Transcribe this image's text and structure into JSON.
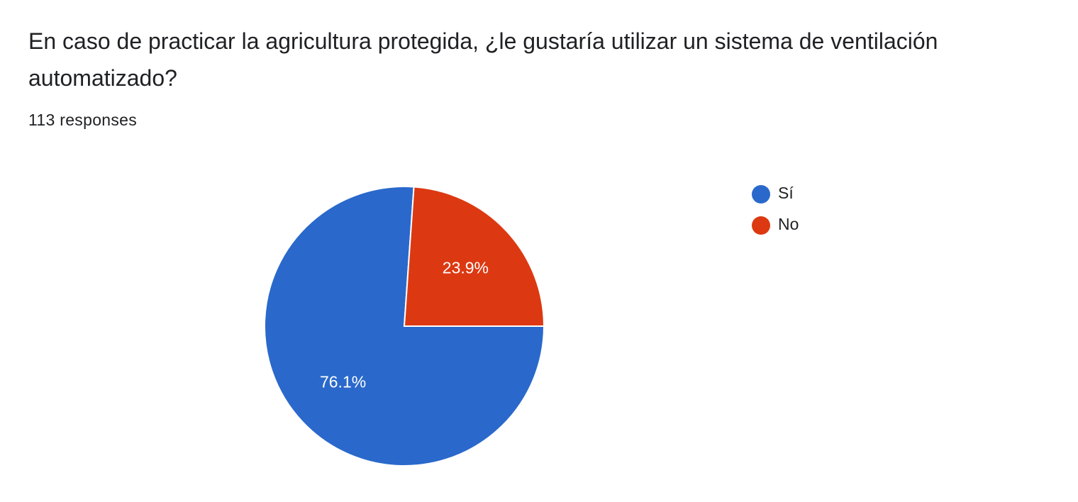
{
  "question": {
    "title": "En caso de practicar la agricultura protegida, ¿le gustaría utilizar un sistema de ventilación automatizado?",
    "responses": "113 responses"
  },
  "chart_data": {
    "type": "pie",
    "slices": [
      {
        "label": "Sí",
        "value": 76.1,
        "display": "76.1%",
        "color": "#2A69CB"
      },
      {
        "label": "No",
        "value": 23.9,
        "display": "23.9%",
        "color": "#DC3912"
      }
    ],
    "legend_position": "right"
  }
}
